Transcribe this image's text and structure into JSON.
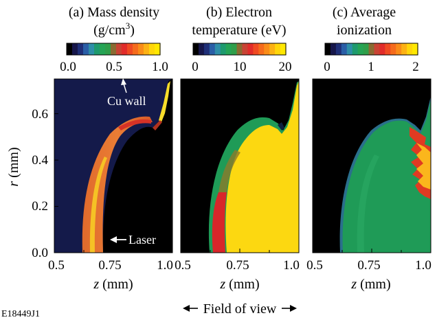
{
  "figure_id": "E18449J1",
  "field_of_view_label": "Field of view",
  "y_axis": {
    "label_var": "r",
    "label_unit": "(mm)"
  },
  "colors": {
    "colormap": [
      "#000000",
      "#16164a",
      "#1f2f78",
      "#2a5ea6",
      "#2e8ea8",
      "#1e9a6e",
      "#25a455",
      "#2f9e4a",
      "#8a6a32",
      "#c94334",
      "#e12c2a",
      "#ef4a22",
      "#f56b1c",
      "#f98c18",
      "#fcb114",
      "#ffd60a",
      "#ffe800"
    ],
    "navy_background": "#141a4a",
    "black": "#000000",
    "green": "#1f9b57",
    "green_dark": "#18885a",
    "teal_edge": "#2a6f8c",
    "red": "#d8262a",
    "orange": "#e8682c",
    "orange_light": "#f08a3a",
    "yellow": "#fcd811",
    "yellow_bright": "#ffe500"
  },
  "chart_data": [
    {
      "type": "heatmap",
      "panel_id": "(a)",
      "title_lines": [
        "(a) Mass density",
        "(g/cm",
        "3",
        ")"
      ],
      "colorbar": {
        "ticks": [
          "0.0",
          "0.5",
          "1.0"
        ],
        "range": [
          0,
          1.0
        ]
      },
      "xlabel_var": "z",
      "xlabel_unit": "(mm)",
      "xlim": [
        0.5,
        1.0
      ],
      "x_ticks": [
        "0.5",
        "0.75",
        "1.0"
      ],
      "ylim": [
        0.0,
        0.75
      ],
      "y_ticks": [
        "0.0",
        "0.2",
        "0.4",
        "0.6"
      ],
      "annotations": [
        {
          "text": "Cu wall"
        },
        {
          "text": "Laser"
        }
      ]
    },
    {
      "type": "heatmap",
      "panel_id": "(b)",
      "title_lines": [
        "(b) Electron",
        "temperature (eV)"
      ],
      "colorbar": {
        "ticks": [
          "0",
          "10",
          "20"
        ],
        "range": [
          0,
          20
        ]
      },
      "xlabel_var": "z",
      "xlabel_unit": "(mm)",
      "xlim": [
        0.5,
        1.0
      ],
      "x_ticks": [
        "0.5",
        "0.75",
        "1.0"
      ],
      "ylim": [
        0.0,
        0.75
      ]
    },
    {
      "type": "heatmap",
      "panel_id": "(c)",
      "title_lines": [
        "(c) Average",
        "ionization"
      ],
      "colorbar": {
        "ticks": [
          "0",
          "1",
          "2"
        ],
        "range": [
          0,
          2
        ]
      },
      "xlabel_var": "z",
      "xlabel_unit": "(mm)",
      "xlim": [
        0.5,
        1.0
      ],
      "x_ticks": [
        "0.5",
        "0.75",
        "1.0"
      ],
      "ylim": [
        0.0,
        0.75
      ]
    }
  ]
}
